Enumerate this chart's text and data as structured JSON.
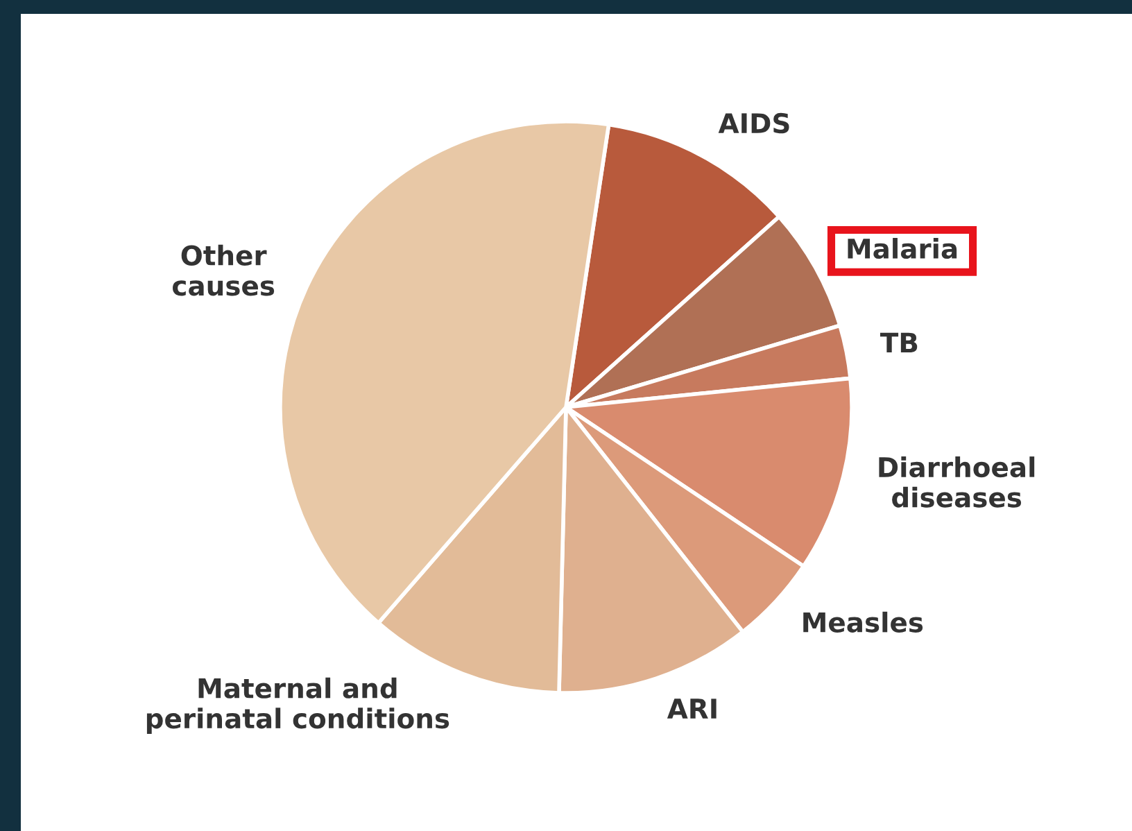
{
  "chart_data": {
    "type": "pie",
    "categories": [
      "AIDS",
      "Malaria",
      "TB",
      "Diarrhoeal\ndiseases",
      "Measles",
      "ARI",
      "Maternal and\nperinatal conditions",
      "Other\ncauses"
    ],
    "values": [
      11,
      7,
      3,
      11,
      5,
      11,
      11,
      41
    ],
    "colors": [
      "#b85a3c",
      "#b07055",
      "#c77a5e",
      "#d98b6e",
      "#dc9a7a",
      "#dfb08f",
      "#e2bb98",
      "#e8c8a6"
    ]
  }
}
